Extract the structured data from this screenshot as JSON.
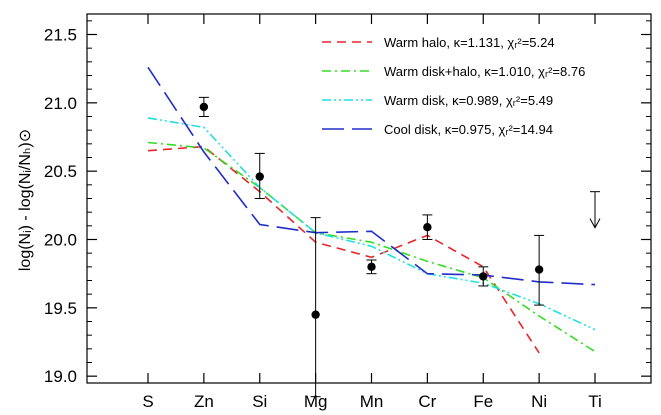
{
  "chart_data": {
    "type": "line",
    "title": "",
    "xlabel": "",
    "ylabel": "log(Nᵢ) - log(Nᵢ/Nₕ)⊙",
    "categories": [
      "S",
      "Zn",
      "Si",
      "Mg",
      "Mn",
      "Cr",
      "Fe",
      "Ni",
      "Ti"
    ],
    "ylim": [
      18.95,
      21.65
    ],
    "yticks": [
      19.0,
      19.5,
      20.0,
      20.5,
      21.0,
      21.5
    ],
    "ytick_labels": [
      "19.0",
      "19.5",
      "20.0",
      "20.5",
      "21.0",
      "21.5"
    ],
    "grid": false,
    "legend_position": "top-right",
    "series": [
      {
        "name": "Warm halo, κ=1.131, χᵣ²=5.24",
        "style": "dashed",
        "color": "#e8252b",
        "values": [
          20.65,
          20.68,
          20.35,
          19.98,
          19.87,
          20.03,
          19.8,
          19.17,
          null
        ]
      },
      {
        "name": "Warm disk+halo, κ=1.010, χᵣ²=8.76",
        "style": "dash-dot",
        "color": "#33dd22",
        "values": [
          20.71,
          20.67,
          20.38,
          20.05,
          19.98,
          19.84,
          19.72,
          19.44,
          19.18
        ]
      },
      {
        "name": "Warm disk, κ=0.989, χᵣ²=5.49",
        "style": "dash-dot-dot",
        "color": "#22e0e0",
        "values": [
          20.89,
          20.82,
          20.38,
          20.05,
          19.95,
          19.75,
          19.68,
          19.53,
          19.34
        ]
      },
      {
        "name": "Cool disk, κ=0.975, χᵣ²=14.94",
        "style": "long-dash",
        "color": "#1f2ec8",
        "values": [
          21.26,
          20.64,
          20.11,
          20.05,
          20.06,
          19.75,
          19.74,
          19.69,
          19.67
        ]
      }
    ],
    "observations": [
      {
        "category": "Zn",
        "y": 20.97,
        "err_low": 0.07,
        "err_high": 0.07
      },
      {
        "category": "Si",
        "y": 20.46,
        "err_low": 0.16,
        "err_high": 0.17
      },
      {
        "category": "Mg",
        "y": 19.45,
        "err_low": 0.6,
        "err_high": 0.71
      },
      {
        "category": "Mn",
        "y": 19.8,
        "err_low": 0.05,
        "err_high": 0.05
      },
      {
        "category": "Cr",
        "y": 20.09,
        "err_low": 0.09,
        "err_high": 0.09
      },
      {
        "category": "Fe",
        "y": 19.73,
        "err_low": 0.07,
        "err_high": 0.07
      },
      {
        "category": "Ni",
        "y": 19.78,
        "err_low": 0.26,
        "err_high": 0.25
      }
    ],
    "upper_limits": [
      {
        "category": "Ti",
        "y": 20.35
      }
    ]
  }
}
